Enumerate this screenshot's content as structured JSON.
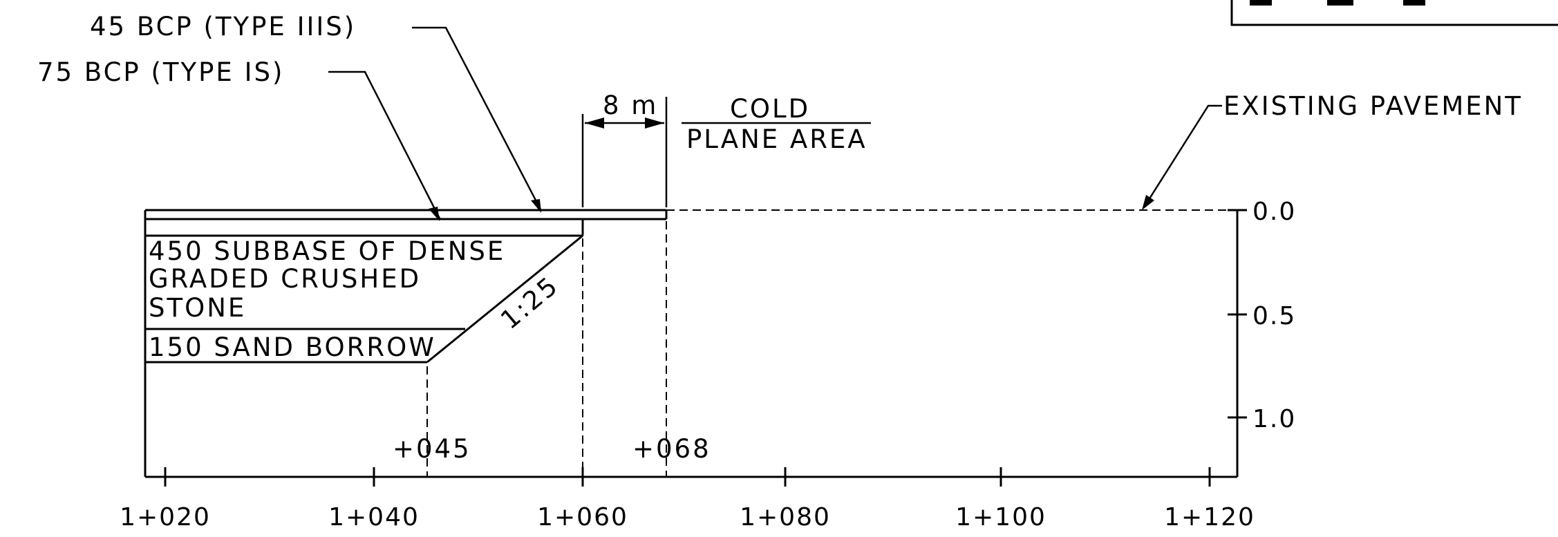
{
  "labels": {
    "bcp_45": "45 BCP (TYPE IIIS)",
    "bcp_75": "75 BCP (TYPE IS)",
    "dim_8m": "8 m",
    "cold_plane_1": "COLD",
    "cold_plane_2": "PLANE AREA",
    "existing_pavement": "EXISTING PAVEMENT",
    "subbase_1": "450 SUBBASE OF DENSE",
    "subbase_2": "GRADED CRUSHED",
    "subbase_3": "STONE",
    "sand_borrow": "150 SAND BORROW",
    "slope": "1:25",
    "offset_045": "+045",
    "offset_068": "+068"
  },
  "stations": [
    "1+020",
    "1+040",
    "1+060",
    "1+080",
    "1+100",
    "1+120"
  ],
  "depths": [
    "0.0",
    "0.5",
    "1.0"
  ]
}
